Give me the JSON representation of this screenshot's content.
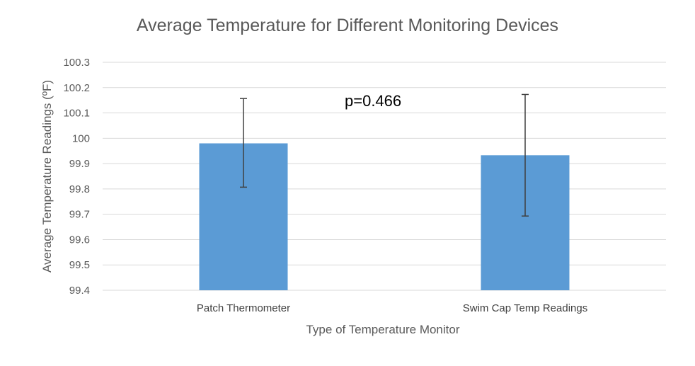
{
  "chart_data": {
    "type": "bar",
    "title": "Average Temperature for Different Monitoring Devices",
    "xlabel": "Type of Temperature Monitor",
    "ylabel": "Average Temperature Readings (ºF)",
    "categories": [
      "Patch Thermometer",
      "Swim Cap Temp Readings"
    ],
    "values": [
      99.98,
      99.933
    ],
    "error_bars": [
      {
        "low": 99.807,
        "high": 100.157
      },
      {
        "low": 99.693,
        "high": 100.173
      }
    ],
    "ylim": [
      99.4,
      100.3
    ],
    "yticks": [
      "99.4",
      "99.5",
      "99.6",
      "99.7",
      "99.8",
      "99.9",
      "100",
      "100.1",
      "100.2",
      "100.3"
    ],
    "grid": true,
    "annotation": "p=0.466",
    "bar_color": "#5B9BD5",
    "grid_color": "#D9D9D9",
    "error_color": "#404040"
  }
}
